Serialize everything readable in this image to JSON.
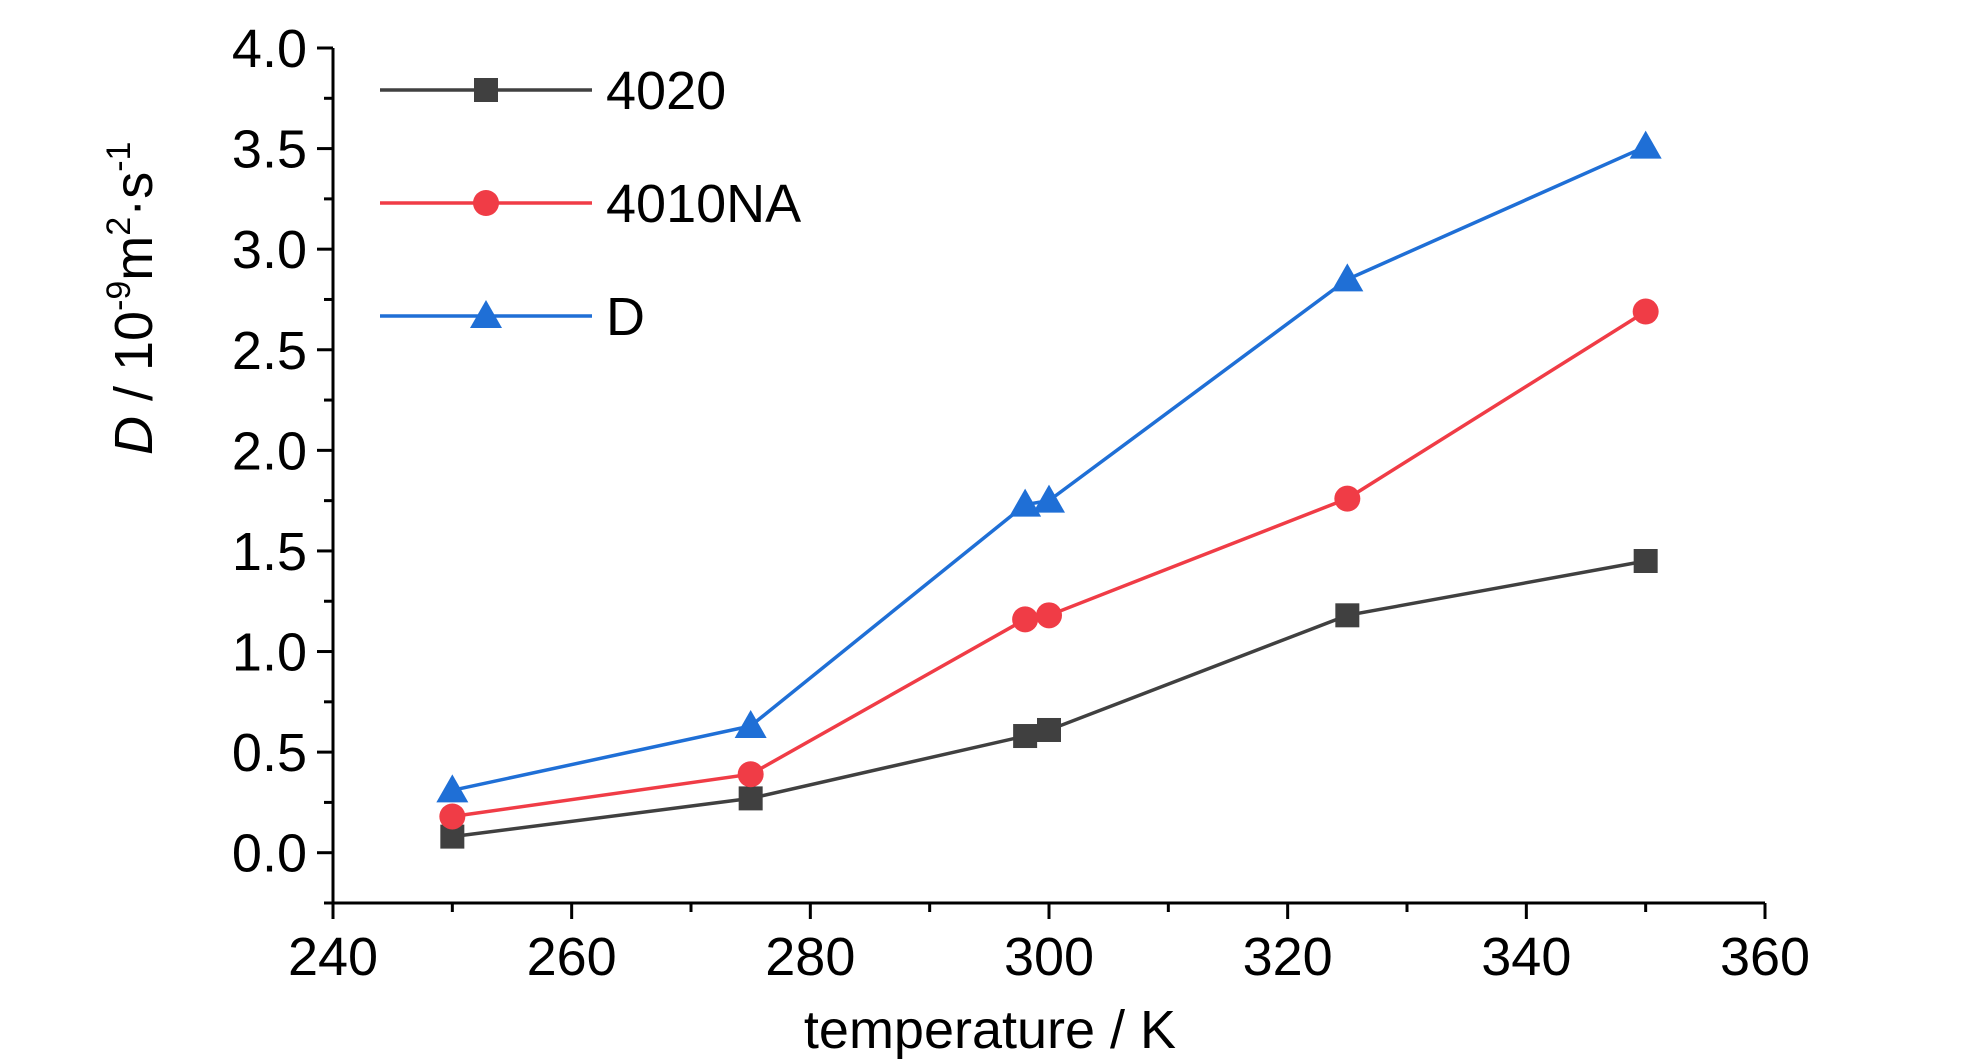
{
  "chart_data": {
    "type": "line",
    "xlabel": "temperature / K",
    "ylabel": {
      "italic": "D",
      "text": " / 10",
      "sup1": "-9",
      "mid": "m",
      "sup2": "2",
      "mid2": "·s",
      "sup3": "-1"
    },
    "xlim": [
      240,
      360
    ],
    "ylim": [
      -0.25,
      4.0
    ],
    "xticks": [
      240,
      260,
      280,
      300,
      320,
      340,
      360
    ],
    "xtick_labels": [
      "240",
      "260",
      "280",
      "300",
      "320",
      "340",
      "360"
    ],
    "yticks": [
      0.0,
      0.5,
      1.0,
      1.5,
      2.0,
      2.5,
      3.0,
      3.5,
      4.0
    ],
    "ytick_labels": [
      "0.0",
      "0.5",
      "1.0",
      "1.5",
      "2.0",
      "2.5",
      "3.0",
      "3.5",
      "4.0"
    ],
    "legend_position": "top-left",
    "series": [
      {
        "name": "4020",
        "color": "#404040",
        "marker": "square",
        "x": [
          250,
          275,
          298,
          300,
          325,
          350
        ],
        "y": [
          0.08,
          0.27,
          0.58,
          0.61,
          1.18,
          1.45
        ]
      },
      {
        "name": "4010NA",
        "color": "#f03c46",
        "marker": "circle",
        "x": [
          250,
          275,
          298,
          300,
          325,
          350
        ],
        "y": [
          0.18,
          0.39,
          1.16,
          1.18,
          1.76,
          2.69
        ]
      },
      {
        "name": "D",
        "color": "#1f6fd6",
        "marker": "triangle",
        "x": [
          250,
          275,
          298,
          300,
          325,
          350
        ],
        "y": [
          0.31,
          0.63,
          1.73,
          1.75,
          2.85,
          3.51
        ]
      }
    ]
  }
}
